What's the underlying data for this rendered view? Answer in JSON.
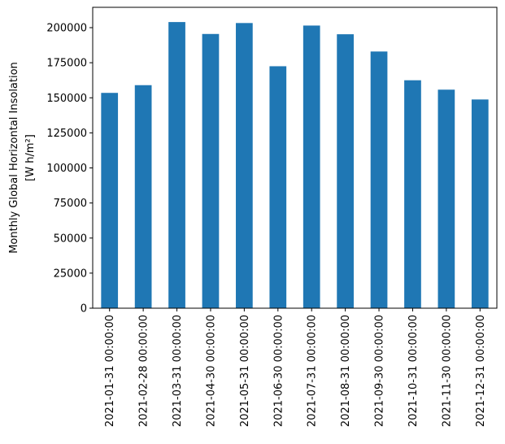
{
  "chart_data": {
    "type": "bar",
    "categories": [
      "2021-01-31 00:00:00",
      "2021-02-28 00:00:00",
      "2021-03-31 00:00:00",
      "2021-04-30 00:00:00",
      "2021-05-31 00:00:00",
      "2021-06-30 00:00:00",
      "2021-07-31 00:00:00",
      "2021-08-31 00:00:00",
      "2021-09-30 00:00:00",
      "2021-10-31 00:00:00",
      "2021-11-30 00:00:00",
      "2021-12-31 00:00:00"
    ],
    "values": [
      153500,
      159000,
      204000,
      195500,
      203300,
      172500,
      201500,
      195300,
      183000,
      162500,
      155800,
      148800
    ],
    "title": "",
    "xlabel": "",
    "ylabel_line1": "Monthly Global Horizontal Insolation",
    "ylabel_line2": "[W h/m²]",
    "ylim": [
      0,
      214500
    ],
    "yticks": [
      0,
      25000,
      50000,
      75000,
      100000,
      125000,
      150000,
      175000,
      200000
    ],
    "bar_color": "#1f77b4",
    "grid": false,
    "legend": "none"
  }
}
